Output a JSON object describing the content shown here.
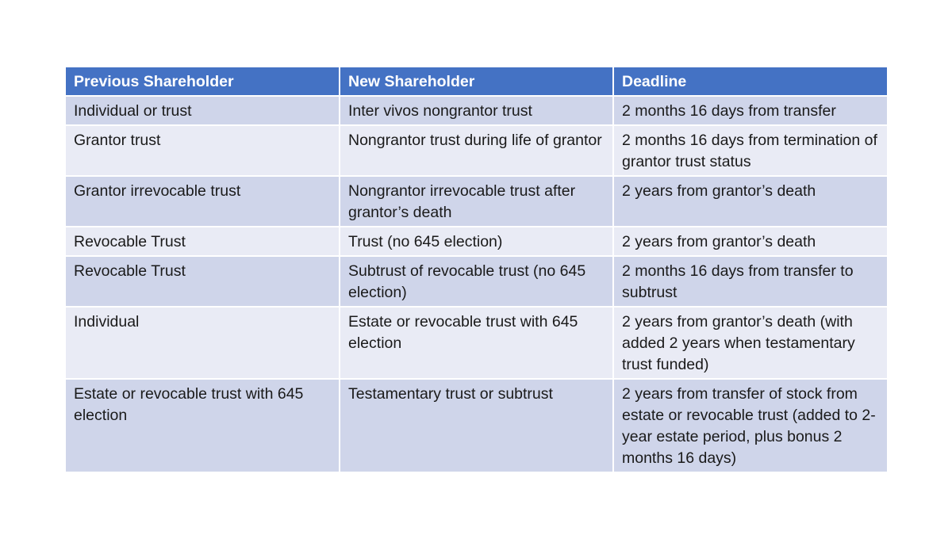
{
  "table": {
    "headers": [
      "Previous Shareholder",
      "New Shareholder",
      "Deadline"
    ],
    "rows": [
      [
        "Individual or trust",
        "Inter vivos nongrantor trust",
        "2 months 16 days from transfer"
      ],
      [
        "Grantor trust",
        "Nongrantor trust during life of grantor",
        "2 months 16 days from termination of grantor trust status"
      ],
      [
        "Grantor irrevocable trust",
        "Nongrantor irrevocable trust after grantor’s death",
        "2 years from grantor’s death"
      ],
      [
        "Revocable Trust",
        "Trust (no 645 election)",
        "2 years from grantor’s death"
      ],
      [
        "Revocable Trust",
        "Subtrust of revocable trust (no 645 election)",
        "2 months 16 days from transfer to subtrust"
      ],
      [
        "Individual",
        "Estate or revocable trust with 645 election",
        "2 years from grantor’s death (with added 2 years when testamentary trust funded)"
      ],
      [
        "Estate or revocable trust with 645 election",
        "Testamentary trust or subtrust",
        "2 years from transfer of stock from estate or revocable trust (added to 2-year estate period, plus bonus 2 months 16 days)"
      ]
    ]
  },
  "colors": {
    "header_bg": "#4472c4",
    "row_odd_bg": "#cfd5ea",
    "row_even_bg": "#e9ebf5"
  }
}
